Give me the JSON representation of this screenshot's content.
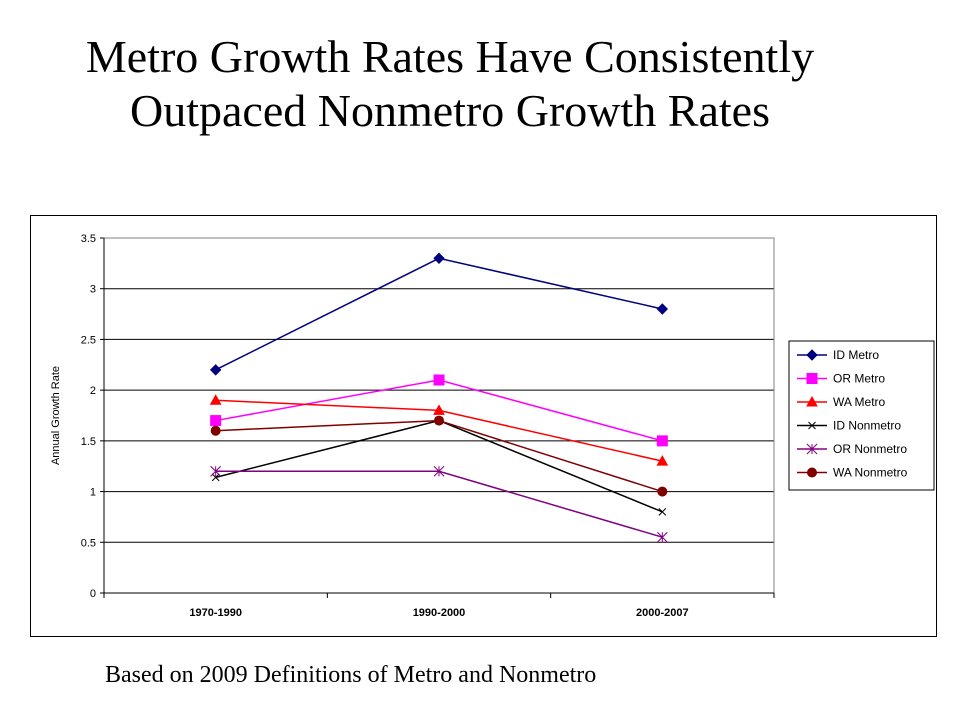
{
  "slide": {
    "title_line1": "Metro Growth Rates Have Consistently",
    "title_line2": "Outpaced Nonmetro Growth Rates",
    "footnote": "Based on 2009 Definitions of Metro and Nonmetro"
  },
  "chart_data": {
    "type": "line",
    "categories": [
      "1970-1990",
      "1990-2000",
      "2000-2007"
    ],
    "ylabel": "Annual Growth Rate",
    "xlabel": "",
    "ylim": [
      0,
      3.5
    ],
    "yticks": [
      "0",
      "0.5",
      "1",
      "1.5",
      "2",
      "2.5",
      "3",
      "3.5"
    ],
    "grid": true,
    "legend": "right",
    "series": [
      {
        "name": "ID Metro",
        "values": [
          2.2,
          3.3,
          2.8
        ],
        "color": "#000080",
        "marker": "diamond"
      },
      {
        "name": "OR Metro",
        "values": [
          1.7,
          2.1,
          1.5
        ],
        "color": "#ff00ff",
        "marker": "square"
      },
      {
        "name": "WA Metro",
        "values": [
          1.9,
          1.8,
          1.3
        ],
        "color": "#ff0000",
        "marker": "triangle"
      },
      {
        "name": "ID Nonmetro",
        "values": [
          1.14,
          1.7,
          0.8
        ],
        "color": "#000000",
        "marker": "x"
      },
      {
        "name": "OR Nonmetro",
        "values": [
          1.2,
          1.2,
          0.55
        ],
        "color": "#800080",
        "marker": "star"
      },
      {
        "name": "WA Nonmetro",
        "values": [
          1.6,
          1.7,
          1.0
        ],
        "color": "#800000",
        "marker": "circle"
      }
    ]
  }
}
